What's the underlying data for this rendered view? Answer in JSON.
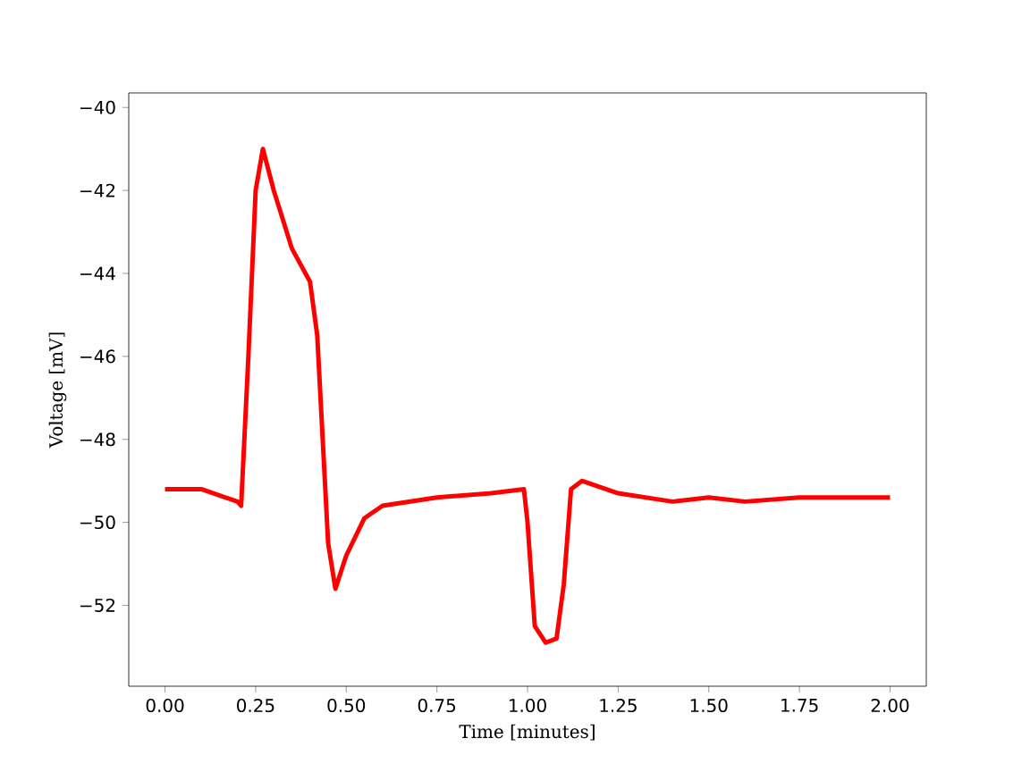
{
  "chart_data": {
    "type": "line",
    "xlabel": "Time [minutes]",
    "ylabel": "Voltage [mV]",
    "xlim": [
      -0.1,
      2.1
    ],
    "ylim": [
      -53.95,
      -39.65
    ],
    "xticks": [
      {
        "value": 0,
        "label": "0.00"
      },
      {
        "value": 0.25,
        "label": "0.25"
      },
      {
        "value": 0.5,
        "label": "0.50"
      },
      {
        "value": 0.75,
        "label": "0.75"
      },
      {
        "value": 1,
        "label": "1.00"
      },
      {
        "value": 1.25,
        "label": "1.25"
      },
      {
        "value": 1.5,
        "label": "1.50"
      },
      {
        "value": 1.75,
        "label": "1.75"
      },
      {
        "value": 2,
        "label": "2.00"
      }
    ],
    "yticks": [
      {
        "value": -52,
        "label": "−52"
      },
      {
        "value": -50,
        "label": "−50"
      },
      {
        "value": -48,
        "label": "−48"
      },
      {
        "value": -46,
        "label": "−46"
      },
      {
        "value": -44,
        "label": "−44"
      },
      {
        "value": -42,
        "label": "−42"
      },
      {
        "value": -40,
        "label": "−40"
      }
    ],
    "grid": false,
    "marker": "none",
    "line_style": "solid",
    "series": [
      {
        "color": "#ff0000",
        "x": [
          0.0,
          0.1,
          0.2,
          0.21,
          0.23,
          0.25,
          0.27,
          0.3,
          0.35,
          0.4,
          0.42,
          0.45,
          0.47,
          0.5,
          0.55,
          0.6,
          0.75,
          0.9,
          0.99,
          1.0,
          1.02,
          1.05,
          1.08,
          1.1,
          1.12,
          1.15,
          1.25,
          1.4,
          1.5,
          1.6,
          1.75,
          1.9,
          2.0
        ],
        "values": [
          -49.2,
          -49.2,
          -49.5,
          -49.6,
          -46,
          -42,
          -41,
          -42,
          -43.4,
          -44.2,
          -45.5,
          -50.5,
          -51.6,
          -50.8,
          -49.9,
          -49.6,
          -49.4,
          -49.3,
          -49.2,
          -50,
          -52.5,
          -52.9,
          -52.8,
          -51.5,
          -49.2,
          -49,
          -49.3,
          -49.5,
          -49.4,
          -49.5,
          -49.4,
          -49.4,
          -49.4
        ]
      }
    ]
  }
}
